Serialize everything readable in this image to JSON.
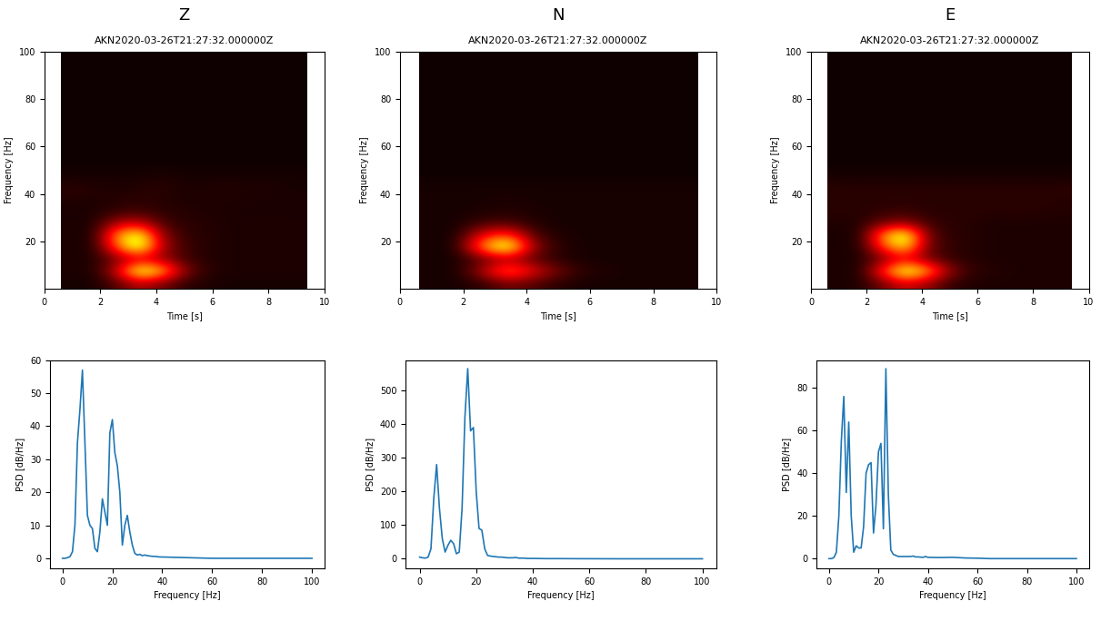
{
  "chart_data": [
    {
      "type": "heatmap",
      "header": "Z",
      "title": "AKN2020-03-26T21:27:32.000000Z",
      "xlabel": "Time [s]",
      "ylabel": "Frequency [Hz]",
      "xlim": [
        0,
        10
      ],
      "ylim": [
        0,
        100
      ],
      "xticks": [
        0,
        2,
        4,
        6,
        8,
        10
      ],
      "yticks": [
        20,
        40,
        60,
        80,
        100
      ],
      "cells_x_range": [
        0.6,
        9.4
      ],
      "cells_y_range": [
        0,
        100
      ],
      "color_range": [
        0,
        1
      ],
      "cells": [
        [
          0.02,
          0.02,
          0.1,
          0.25,
          0.15,
          0.05,
          0.03,
          0.02,
          0.02,
          0.02,
          0.02
        ],
        [
          0.03,
          0.03,
          0.3,
          0.9,
          0.7,
          0.2,
          0.05,
          0.03,
          0.03,
          0.03,
          0.03
        ],
        [
          0.03,
          0.03,
          0.15,
          0.25,
          0.2,
          0.08,
          0.04,
          0.03,
          0.03,
          0.03,
          0.03
        ],
        [
          0.03,
          0.03,
          0.5,
          0.9,
          0.25,
          0.08,
          0.04,
          0.03,
          0.03,
          0.03,
          0.03
        ],
        [
          0.03,
          0.03,
          0.6,
          0.85,
          0.2,
          0.06,
          0.04,
          0.03,
          0.03,
          0.03,
          0.03
        ],
        [
          0.03,
          0.03,
          0.25,
          0.3,
          0.1,
          0.05,
          0.04,
          0.03,
          0.03,
          0.03,
          0.03
        ],
        [
          0.02,
          0.03,
          0.06,
          0.08,
          0.05,
          0.04,
          0.03,
          0.03,
          0.02,
          0.03,
          0.02
        ],
        [
          0.04,
          0.03,
          0.04,
          0.05,
          0.04,
          0.03,
          0.04,
          0.03,
          0.03,
          0.02,
          0.03
        ],
        [
          0.05,
          0.04,
          0.03,
          0.04,
          0.05,
          0.03,
          0.03,
          0.04,
          0.03,
          0.03,
          0.02
        ],
        [
          0.02,
          0.02,
          0.02,
          0.02,
          0.03,
          0.02,
          0.02,
          0.02,
          0.02,
          0.02,
          0.02
        ],
        [
          0.01,
          0.01,
          0.01,
          0.01,
          0.01,
          0.01,
          0.01,
          0.01,
          0.01,
          0.01,
          0.01
        ],
        [
          0.01,
          0.01,
          0.01,
          0.01,
          0.01,
          0.01,
          0.01,
          0.01,
          0.01,
          0.01,
          0.01
        ],
        [
          0.01,
          0.01,
          0.01,
          0.01,
          0.01,
          0.01,
          0.01,
          0.01,
          0.01,
          0.01,
          0.01
        ],
        [
          0.01,
          0.01,
          0.01,
          0.01,
          0.01,
          0.01,
          0.01,
          0.01,
          0.01,
          0.01,
          0.01
        ],
        [
          0.01,
          0.01,
          0.01,
          0.01,
          0.01,
          0.01,
          0.01,
          0.01,
          0.01,
          0.01,
          0.01
        ],
        [
          0.01,
          0.01,
          0.01,
          0.01,
          0.01,
          0.01,
          0.01,
          0.01,
          0.01,
          0.01,
          0.01
        ],
        [
          0.01,
          0.01,
          0.01,
          0.01,
          0.01,
          0.01,
          0.01,
          0.01,
          0.01,
          0.01,
          0.01
        ],
        [
          0.01,
          0.01,
          0.01,
          0.01,
          0.01,
          0.01,
          0.01,
          0.01,
          0.01,
          0.01,
          0.01
        ],
        [
          0.01,
          0.01,
          0.01,
          0.01,
          0.01,
          0.01,
          0.01,
          0.01,
          0.01,
          0.01,
          0.01
        ],
        [
          0.01,
          0.01,
          0.01,
          0.01,
          0.01,
          0.01,
          0.01,
          0.01,
          0.01,
          0.01,
          0.01
        ]
      ]
    },
    {
      "type": "heatmap",
      "header": "N",
      "title": "AKN2020-03-26T21:27:32.000000Z",
      "xlabel": "Time [s]",
      "ylabel": "Frequency [Hz]",
      "xlim": [
        0,
        10
      ],
      "ylim": [
        0,
        100
      ],
      "xticks": [
        0,
        2,
        4,
        6,
        8,
        10
      ],
      "yticks": [
        20,
        40,
        60,
        80,
        100
      ],
      "cells_x_range": [
        0.6,
        9.4
      ],
      "cells_y_range": [
        0,
        100
      ],
      "color_range": [
        0,
        1
      ],
      "cells": [
        [
          0.02,
          0.02,
          0.05,
          0.15,
          0.1,
          0.04,
          0.02,
          0.02,
          0.02,
          0.02,
          0.02
        ],
        [
          0.02,
          0.02,
          0.25,
          0.6,
          0.35,
          0.15,
          0.05,
          0.03,
          0.02,
          0.02,
          0.02
        ],
        [
          0.02,
          0.02,
          0.1,
          0.2,
          0.1,
          0.04,
          0.02,
          0.02,
          0.02,
          0.02,
          0.02
        ],
        [
          0.02,
          0.02,
          0.6,
          0.95,
          0.2,
          0.05,
          0.02,
          0.02,
          0.02,
          0.02,
          0.02
        ],
        [
          0.02,
          0.02,
          0.35,
          0.5,
          0.1,
          0.03,
          0.02,
          0.02,
          0.02,
          0.02,
          0.02
        ],
        [
          0.02,
          0.02,
          0.08,
          0.1,
          0.04,
          0.02,
          0.02,
          0.02,
          0.02,
          0.02,
          0.02
        ],
        [
          0.02,
          0.02,
          0.03,
          0.04,
          0.03,
          0.02,
          0.02,
          0.02,
          0.02,
          0.02,
          0.02
        ],
        [
          0.02,
          0.02,
          0.02,
          0.03,
          0.02,
          0.02,
          0.02,
          0.02,
          0.02,
          0.02,
          0.02
        ],
        [
          0.02,
          0.02,
          0.02,
          0.02,
          0.02,
          0.02,
          0.02,
          0.02,
          0.02,
          0.02,
          0.02
        ],
        [
          0.01,
          0.01,
          0.01,
          0.01,
          0.01,
          0.01,
          0.01,
          0.01,
          0.01,
          0.01,
          0.01
        ],
        [
          0.01,
          0.01,
          0.01,
          0.01,
          0.01,
          0.01,
          0.01,
          0.01,
          0.01,
          0.01,
          0.01
        ],
        [
          0.01,
          0.01,
          0.01,
          0.01,
          0.01,
          0.01,
          0.01,
          0.01,
          0.01,
          0.01,
          0.01
        ],
        [
          0.01,
          0.01,
          0.01,
          0.01,
          0.01,
          0.01,
          0.01,
          0.01,
          0.01,
          0.01,
          0.01
        ],
        [
          0.01,
          0.01,
          0.01,
          0.01,
          0.01,
          0.01,
          0.01,
          0.01,
          0.01,
          0.01,
          0.01
        ],
        [
          0.01,
          0.01,
          0.01,
          0.01,
          0.01,
          0.01,
          0.01,
          0.01,
          0.01,
          0.01,
          0.01
        ],
        [
          0.01,
          0.01,
          0.01,
          0.01,
          0.01,
          0.01,
          0.01,
          0.01,
          0.01,
          0.01,
          0.01
        ],
        [
          0.01,
          0.01,
          0.01,
          0.01,
          0.01,
          0.01,
          0.01,
          0.01,
          0.01,
          0.01,
          0.01
        ],
        [
          0.01,
          0.01,
          0.01,
          0.01,
          0.01,
          0.01,
          0.01,
          0.01,
          0.01,
          0.01,
          0.01
        ],
        [
          0.01,
          0.01,
          0.01,
          0.01,
          0.01,
          0.01,
          0.01,
          0.01,
          0.01,
          0.01,
          0.01
        ],
        [
          0.01,
          0.01,
          0.01,
          0.01,
          0.01,
          0.01,
          0.01,
          0.01,
          0.01,
          0.01,
          0.01
        ]
      ]
    },
    {
      "type": "heatmap",
      "header": "E",
      "title": "AKN2020-03-26T21:27:32.000000Z",
      "xlabel": "Time [s]",
      "ylabel": "Frequency [Hz]",
      "xlim": [
        0,
        10
      ],
      "ylim": [
        0,
        100
      ],
      "xticks": [
        0,
        2,
        4,
        6,
        8,
        10
      ],
      "yticks": [
        20,
        40,
        60,
        80,
        100
      ],
      "cells_x_range": [
        0.6,
        9.4
      ],
      "cells_y_range": [
        0,
        100
      ],
      "color_range": [
        0,
        1
      ],
      "cells": [
        [
          0.03,
          0.03,
          0.15,
          0.3,
          0.2,
          0.06,
          0.03,
          0.03,
          0.03,
          0.03,
          0.03
        ],
        [
          0.03,
          0.03,
          0.45,
          0.9,
          0.65,
          0.2,
          0.06,
          0.04,
          0.03,
          0.03,
          0.03
        ],
        [
          0.03,
          0.03,
          0.15,
          0.3,
          0.15,
          0.06,
          0.04,
          0.03,
          0.03,
          0.03,
          0.03
        ],
        [
          0.03,
          0.03,
          0.45,
          0.75,
          0.15,
          0.06,
          0.04,
          0.03,
          0.03,
          0.03,
          0.03
        ],
        [
          0.03,
          0.03,
          0.6,
          0.9,
          0.15,
          0.05,
          0.04,
          0.03,
          0.03,
          0.03,
          0.03
        ],
        [
          0.03,
          0.04,
          0.15,
          0.2,
          0.08,
          0.05,
          0.04,
          0.03,
          0.03,
          0.03,
          0.03
        ],
        [
          0.05,
          0.04,
          0.06,
          0.07,
          0.05,
          0.04,
          0.05,
          0.04,
          0.05,
          0.04,
          0.04
        ],
        [
          0.04,
          0.05,
          0.04,
          0.05,
          0.04,
          0.05,
          0.04,
          0.05,
          0.04,
          0.05,
          0.04
        ],
        [
          0.05,
          0.04,
          0.05,
          0.04,
          0.05,
          0.04,
          0.05,
          0.04,
          0.05,
          0.04,
          0.05
        ],
        [
          0.02,
          0.02,
          0.02,
          0.02,
          0.02,
          0.02,
          0.02,
          0.02,
          0.02,
          0.02,
          0.02
        ],
        [
          0.01,
          0.01,
          0.01,
          0.01,
          0.01,
          0.01,
          0.01,
          0.01,
          0.01,
          0.01,
          0.01
        ],
        [
          0.01,
          0.01,
          0.01,
          0.01,
          0.01,
          0.01,
          0.01,
          0.01,
          0.01,
          0.01,
          0.01
        ],
        [
          0.01,
          0.01,
          0.01,
          0.01,
          0.01,
          0.01,
          0.01,
          0.01,
          0.01,
          0.01,
          0.01
        ],
        [
          0.01,
          0.01,
          0.01,
          0.01,
          0.01,
          0.01,
          0.01,
          0.01,
          0.01,
          0.01,
          0.01
        ],
        [
          0.01,
          0.01,
          0.01,
          0.01,
          0.01,
          0.01,
          0.01,
          0.01,
          0.01,
          0.01,
          0.01
        ],
        [
          0.01,
          0.01,
          0.01,
          0.01,
          0.01,
          0.01,
          0.01,
          0.01,
          0.01,
          0.01,
          0.01
        ],
        [
          0.01,
          0.01,
          0.01,
          0.01,
          0.01,
          0.01,
          0.01,
          0.01,
          0.01,
          0.01,
          0.01
        ],
        [
          0.01,
          0.01,
          0.01,
          0.01,
          0.01,
          0.01,
          0.01,
          0.01,
          0.01,
          0.01,
          0.01
        ],
        [
          0.01,
          0.01,
          0.01,
          0.01,
          0.01,
          0.01,
          0.01,
          0.01,
          0.01,
          0.01,
          0.01
        ],
        [
          0.01,
          0.01,
          0.01,
          0.01,
          0.01,
          0.01,
          0.01,
          0.01,
          0.01,
          0.01,
          0.01
        ]
      ]
    },
    {
      "type": "line",
      "xlabel": "Frequency [Hz]",
      "ylabel": "PSD [dB/Hz]",
      "color": "#1f77b4",
      "xlim": [
        -5,
        105
      ],
      "ylim": [
        -3,
        60
      ],
      "xticks": [
        0,
        20,
        40,
        60,
        80,
        100
      ],
      "yticks": [
        0,
        10,
        20,
        30,
        40,
        50,
        60
      ],
      "x": [
        0,
        1,
        2,
        3,
        4,
        5,
        6,
        7,
        8,
        9,
        10,
        11,
        12,
        13,
        14,
        15,
        16,
        17,
        18,
        19,
        20,
        21,
        22,
        23,
        24,
        25,
        26,
        27,
        28,
        29,
        30,
        31,
        32,
        33,
        34,
        35,
        36,
        37,
        38,
        39,
        40,
        45,
        50,
        55,
        60,
        65,
        70,
        75,
        80,
        85,
        90,
        95,
        100
      ],
      "values": [
        0,
        0,
        0.2,
        0.5,
        2,
        10,
        35,
        45,
        57,
        35,
        13,
        10,
        9,
        3,
        2,
        8,
        18,
        14,
        10,
        38,
        42,
        32,
        28,
        20,
        4,
        10,
        13,
        8,
        4,
        1.5,
        1,
        1.2,
        0.8,
        1,
        0.8,
        0.7,
        0.6,
        0.6,
        0.5,
        0.4,
        0.4,
        0.3,
        0.2,
        0.1,
        0,
        0,
        0,
        0,
        0,
        0,
        0,
        0,
        0
      ]
    },
    {
      "type": "line",
      "xlabel": "Frequency [Hz]",
      "ylabel": "PSD [dB/Hz]",
      "color": "#1f77b4",
      "xlim": [
        -5,
        105
      ],
      "ylim": [
        -28,
        590
      ],
      "xticks": [
        0,
        20,
        40,
        60,
        80,
        100
      ],
      "yticks": [
        0,
        100,
        200,
        300,
        400,
        500
      ],
      "x": [
        0,
        1,
        2,
        3,
        4,
        5,
        6,
        7,
        8,
        9,
        10,
        11,
        12,
        13,
        14,
        15,
        16,
        17,
        18,
        19,
        20,
        21,
        22,
        23,
        24,
        25,
        26,
        27,
        28,
        29,
        30,
        31,
        32,
        33,
        34,
        35,
        36,
        37,
        38,
        39,
        40,
        45,
        50,
        55,
        60,
        65,
        70,
        75,
        80,
        85,
        90,
        95,
        100
      ],
      "values": [
        5,
        3,
        2,
        5,
        30,
        180,
        280,
        150,
        60,
        20,
        40,
        55,
        45,
        15,
        20,
        150,
        420,
        565,
        380,
        390,
        200,
        90,
        85,
        30,
        10,
        8,
        7,
        6,
        5,
        5,
        4,
        3,
        3,
        3,
        4,
        2,
        2,
        2,
        1,
        1,
        1,
        0.5,
        0.5,
        0.3,
        0.2,
        0.1,
        0,
        0,
        0,
        0,
        0,
        0,
        0
      ]
    },
    {
      "type": "line",
      "xlabel": "Frequency [Hz]",
      "ylabel": "PSD [dB/Hz]",
      "color": "#1f77b4",
      "xlim": [
        -5,
        105
      ],
      "ylim": [
        -4.5,
        93
      ],
      "xticks": [
        0,
        20,
        40,
        60,
        80,
        100
      ],
      "yticks": [
        0,
        20,
        40,
        60,
        80
      ],
      "x": [
        0,
        1,
        2,
        3,
        4,
        5,
        6,
        7,
        8,
        9,
        10,
        11,
        12,
        13,
        14,
        15,
        16,
        17,
        18,
        19,
        20,
        21,
        22,
        23,
        24,
        25,
        26,
        27,
        28,
        29,
        30,
        31,
        32,
        33,
        34,
        35,
        36,
        37,
        38,
        39,
        40,
        45,
        50,
        55,
        60,
        65,
        70,
        75,
        80,
        85,
        90,
        95,
        100
      ],
      "values": [
        0,
        0,
        0.5,
        3,
        20,
        55,
        76,
        31,
        64,
        20,
        3,
        6,
        5,
        5,
        15,
        40,
        44,
        45,
        12,
        25,
        50,
        54,
        14,
        89,
        30,
        4,
        2,
        1.5,
        1,
        1,
        1,
        1,
        1,
        1,
        1.2,
        0.8,
        0.8,
        0.7,
        0.6,
        1,
        0.6,
        0.5,
        0.6,
        0.3,
        0.2,
        0,
        0,
        0,
        0,
        0,
        0,
        0,
        0
      ]
    }
  ]
}
